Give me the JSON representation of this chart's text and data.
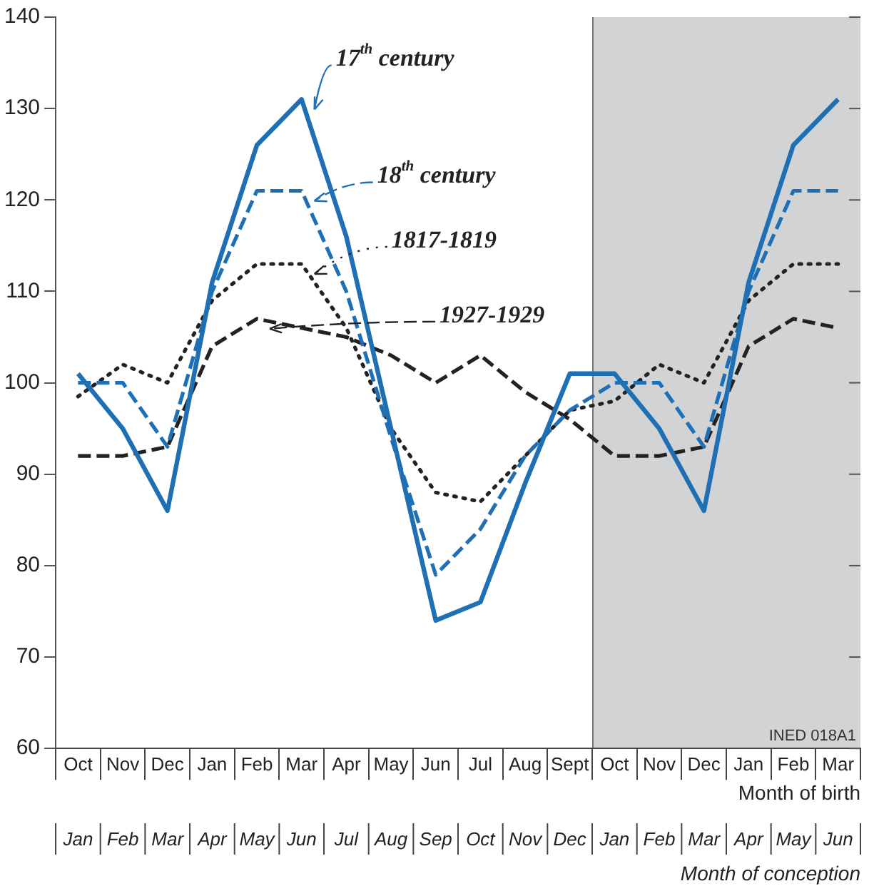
{
  "chart_data": {
    "type": "line",
    "categories": [
      "Oct",
      "Nov",
      "Dec",
      "Jan",
      "Feb",
      "Mar",
      "Apr",
      "May",
      "Jun",
      "Jul",
      "Aug",
      "Sept",
      "Oct",
      "Nov",
      "Dec",
      "Jan",
      "Feb",
      "Mar"
    ],
    "xlabel": "Month of birth",
    "x2label": "Month of conception",
    "ylim": [
      60,
      140
    ],
    "yticks": [
      60,
      70,
      80,
      90,
      100,
      110,
      120,
      130,
      140
    ],
    "series": [
      {
        "name": "17$^{th}$ century",
        "color": "#1f6fb5",
        "line_style": "solid",
        "values": [
          101,
          95,
          86,
          111,
          126,
          131,
          116,
          95,
          74,
          76,
          89,
          101,
          101,
          95,
          86,
          111,
          126,
          131
        ]
      },
      {
        "name": "18$^{th}$ century",
        "color": "#1f6fb5",
        "line_style": "dashed",
        "values": [
          100,
          100,
          93,
          110,
          121,
          121,
          110,
          94,
          79,
          84,
          92,
          97,
          100,
          100,
          93,
          110,
          121,
          121
        ]
      },
      {
        "name": "1817-1819",
        "color": "#222222",
        "line_style": "dotted",
        "values": [
          98.5,
          102,
          100,
          109,
          113,
          113,
          106,
          95,
          88,
          87,
          92,
          97,
          98,
          102,
          100,
          109,
          113,
          113
        ]
      },
      {
        "name": "1927-1929",
        "color": "#222222",
        "line_style": "dashed",
        "values": [
          92,
          92,
          93,
          104,
          107,
          106,
          105,
          103,
          100,
          103,
          99,
          96,
          92,
          92,
          93,
          104,
          107,
          106
        ]
      }
    ],
    "annotations": [
      "Jan",
      "Feb",
      "Mar",
      "Apr",
      "May",
      "Jun",
      "Jul",
      "Aug",
      "Sep",
      "Oct",
      "Nov",
      "Dec",
      "Jan",
      "Feb",
      "Mar",
      "Apr",
      "May",
      "Jun",
      "INED 018A1"
    ],
    "grid": false,
    "legend": false,
    "marker": "none"
  }
}
